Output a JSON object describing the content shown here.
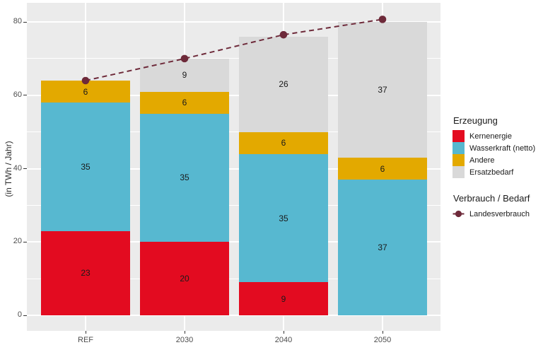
{
  "colors": {
    "background": "#ffffff",
    "panel": "#ebebeb",
    "grid": "#ffffff",
    "axis_text": "#4d4d4d",
    "tick_mark": "#333333",
    "bar_label": "#1a1a1a"
  },
  "legend": {
    "production_title": "Erzeugung",
    "consumption_title": "Verbrauch / Bedarf"
  },
  "chart_data": {
    "type": "bar",
    "subtype": "stacked-bars-with-dashed-line",
    "title": "",
    "xlabel": "",
    "ylabel": "(in TWh / Jahr)",
    "categories": [
      "REF",
      "2030",
      "2040",
      "2050"
    ],
    "series": [
      {
        "name": "Kernenergie",
        "color": "#e30b20",
        "values": [
          23,
          20,
          9,
          0
        ]
      },
      {
        "name": "Wasserkraft (netto)",
        "color": "#57b8d0",
        "values": [
          35,
          35,
          35,
          37
        ]
      },
      {
        "name": "Andere",
        "color": "#e3a900",
        "values": [
          6,
          6,
          6,
          6
        ]
      },
      {
        "name": "Ersatzbedarf",
        "color": "#d9d9d9",
        "values": [
          0,
          9,
          26,
          37
        ]
      }
    ],
    "stack_totals": [
      64,
      70,
      76,
      80
    ],
    "line_series": {
      "name": "Landesverbrauch",
      "color": "#6e2a3a",
      "style": "dashed",
      "marker": "circle",
      "values": [
        64,
        70,
        76.5,
        80.7
      ]
    },
    "ylim": [
      0,
      84
    ],
    "yticks": [
      0,
      20,
      40,
      60,
      80
    ],
    "grid": true,
    "legend_position": "right"
  }
}
